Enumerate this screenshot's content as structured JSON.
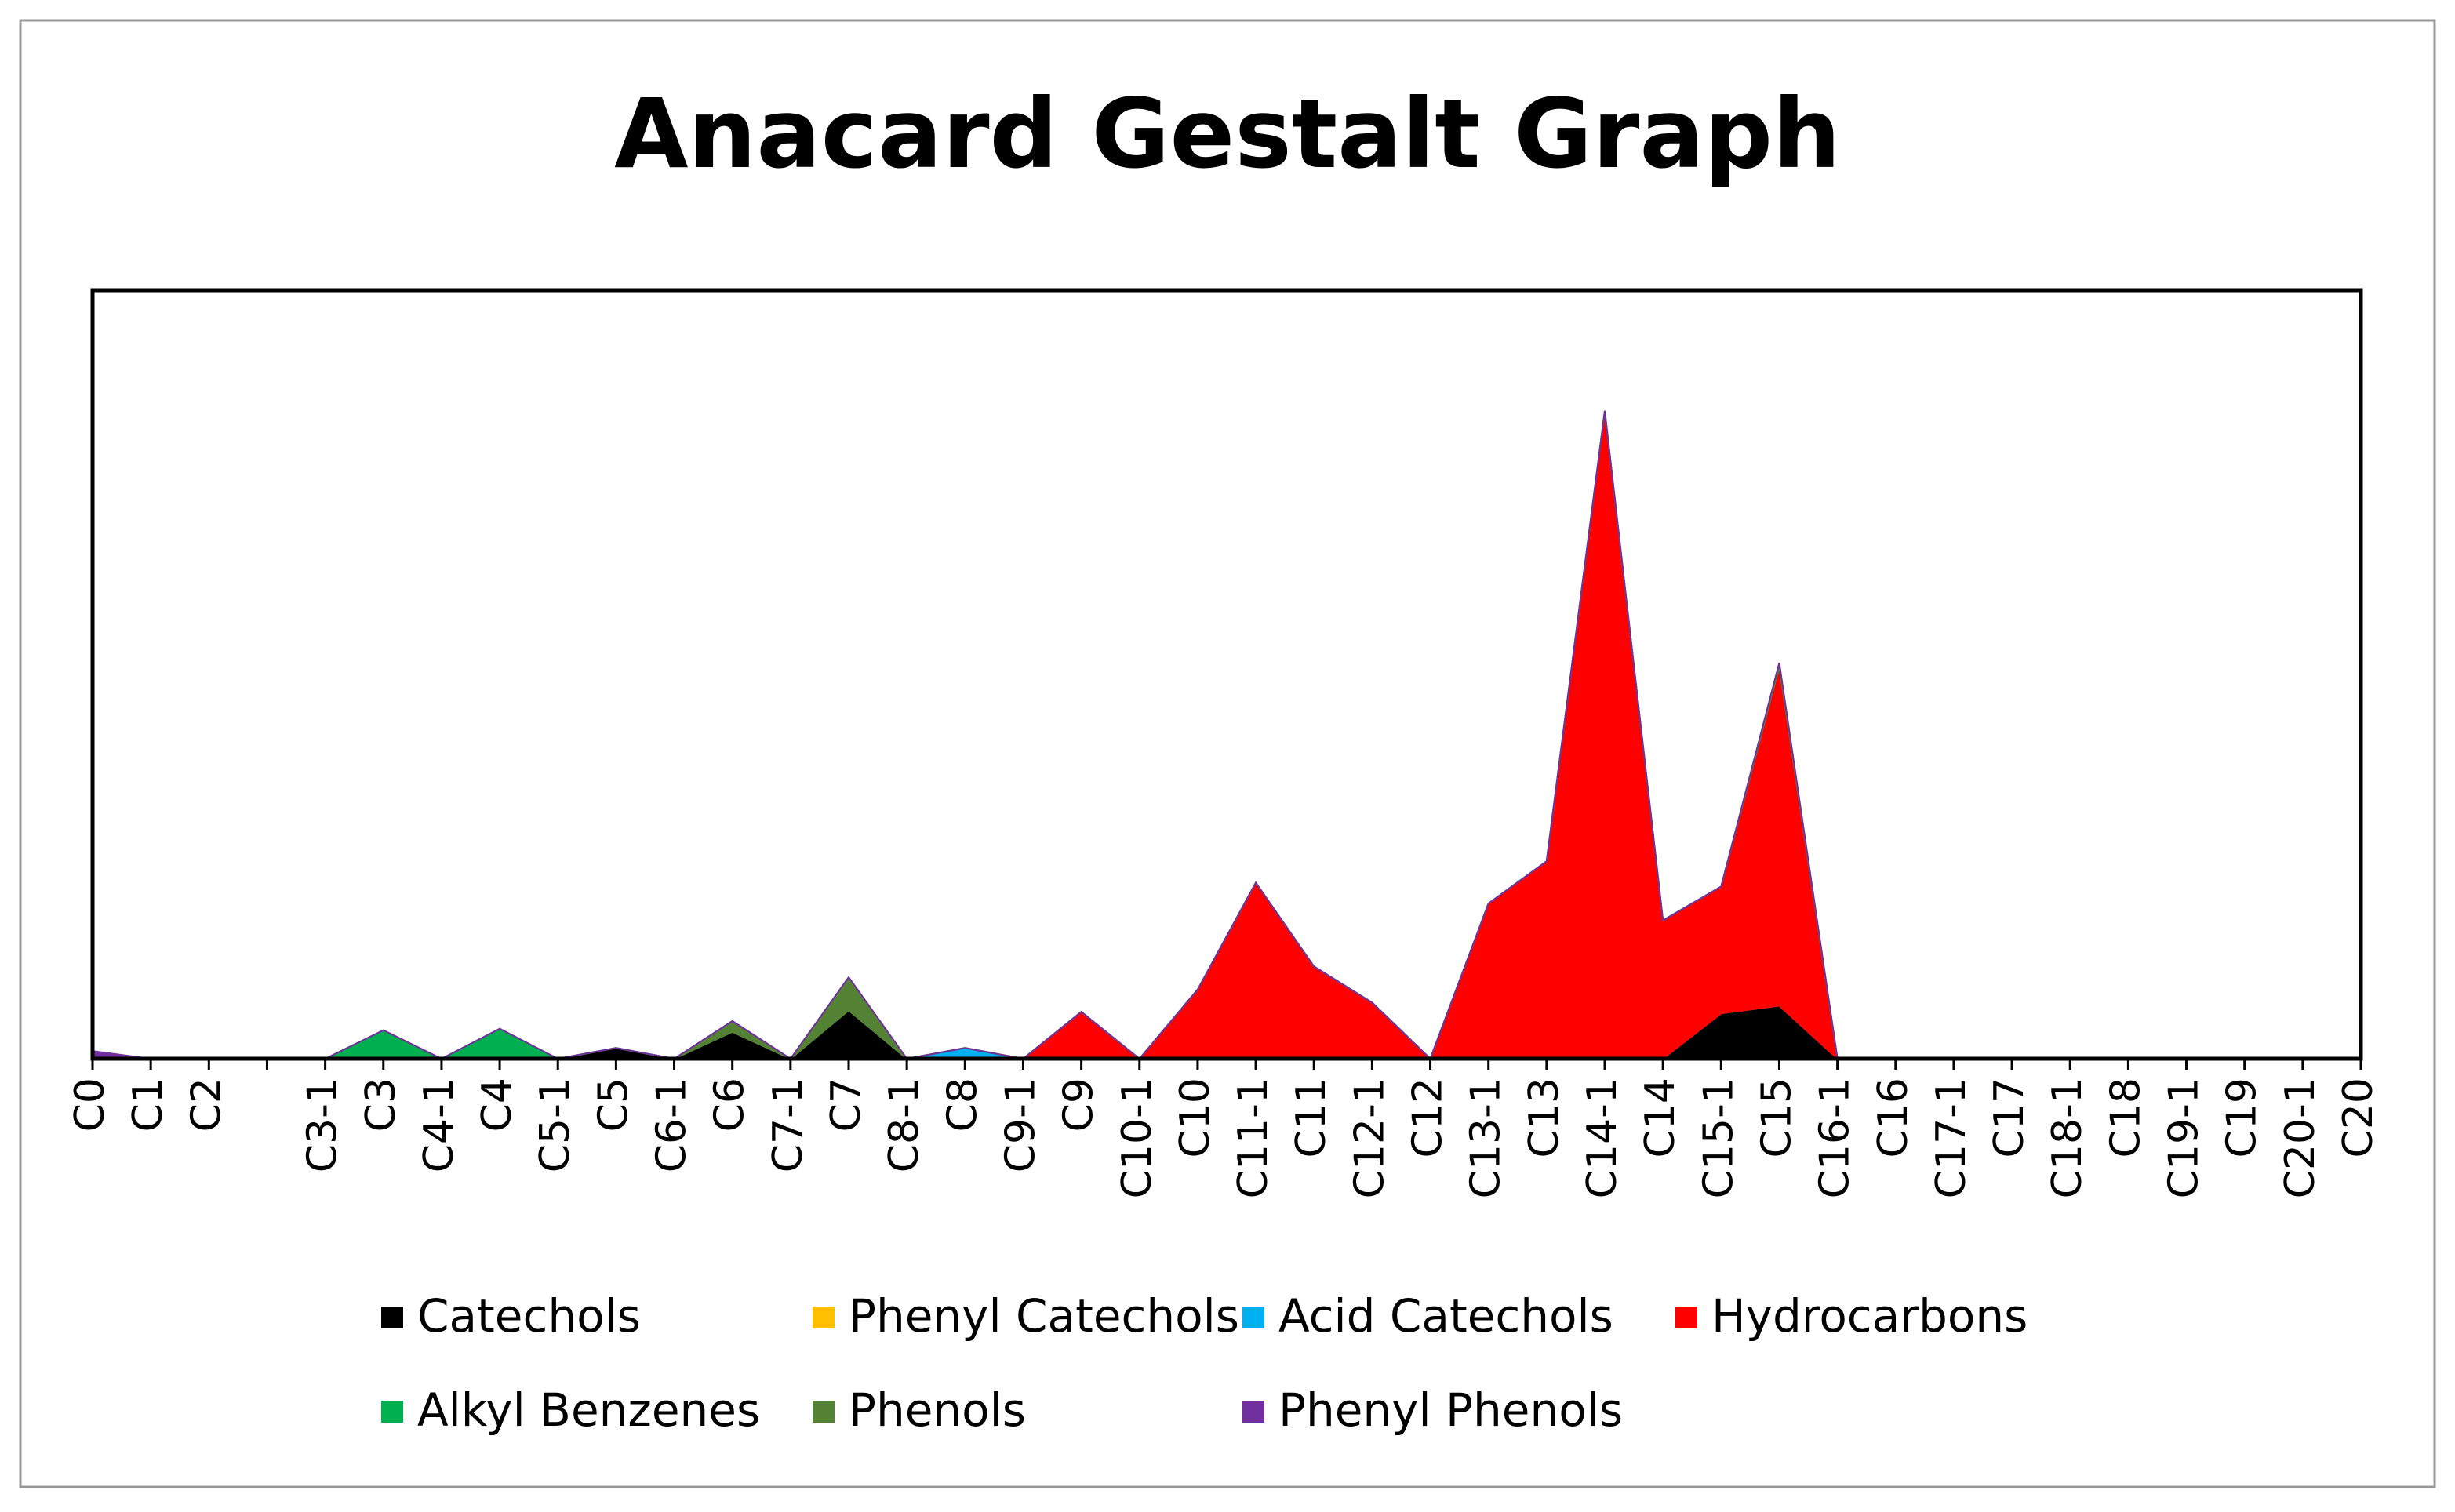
{
  "chart_data": {
    "type": "stacked-area",
    "title": "Anacard Gestalt Graph",
    "categories": [
      "C0",
      "C1",
      "C2",
      null,
      "C3-1",
      "C3",
      "C4-1",
      "C4",
      "C5-1",
      "C5",
      "C6-1",
      "C6",
      "C7-1",
      "C7",
      "C8-1",
      "C8",
      "C9-1",
      "C9",
      "C10-1",
      "C10",
      "C11-1",
      "C11",
      "C12-1",
      "C12",
      "C13-1",
      "C13",
      "C14-1",
      "C14",
      "C15-1",
      "C15",
      "C16-1",
      "C16",
      "C17-1",
      "C17",
      "C18-1",
      "C18",
      "C19-1",
      "C19",
      "C20-1",
      "C20"
    ],
    "ylim": [
      0,
      100
    ],
    "legend": "bottom",
    "series": [
      {
        "name": "Catechols",
        "color": "#000000",
        "values": [
          0,
          0,
          0,
          0,
          0,
          0,
          0,
          0,
          0,
          1.4,
          0,
          3.5,
          0,
          6.3,
          0,
          0,
          0,
          0,
          0,
          0,
          0,
          0,
          0,
          0,
          0,
          0,
          0,
          0,
          5.9,
          6.9,
          0,
          0,
          0,
          0,
          0,
          0,
          0,
          0,
          0,
          0
        ]
      },
      {
        "name": "Phenyl Catechols",
        "color": "#FFC000",
        "values": [
          0,
          0,
          0,
          0,
          0,
          0,
          0,
          0,
          0,
          0,
          0,
          0,
          0,
          0,
          0,
          0,
          0,
          0,
          0,
          0,
          0,
          0,
          0,
          0,
          0,
          0,
          0,
          0,
          0,
          0,
          0,
          0,
          0,
          0,
          0,
          0,
          0,
          0,
          0,
          0
        ]
      },
      {
        "name": "Acid Catechols",
        "color": "#00B0F0",
        "values": [
          0,
          0,
          0,
          0,
          0,
          0,
          0,
          0,
          0,
          0,
          0,
          0,
          0,
          0,
          0,
          1.4,
          0,
          0,
          0,
          0,
          0,
          0,
          0,
          0,
          0,
          0,
          0,
          0,
          0,
          0,
          0,
          0,
          0,
          0,
          0,
          0,
          0,
          0,
          0,
          0
        ]
      },
      {
        "name": "Hydrocarbons",
        "color": "#FF0000",
        "values": [
          0,
          0,
          0,
          0,
          0,
          0,
          0,
          0,
          0,
          0,
          0,
          0,
          0,
          0,
          0,
          0,
          0,
          6.1,
          0,
          9,
          22.9,
          12,
          7.3,
          0,
          20.2,
          25.7,
          84.3,
          18,
          16.5,
          44.1,
          0,
          0,
          0,
          0,
          0,
          0,
          0,
          0,
          0,
          0
        ]
      },
      {
        "name": "Alkyl Benzenes",
        "color": "#00B050",
        "values": [
          0,
          0,
          0,
          0,
          0,
          3.7,
          0,
          3.9,
          0,
          0,
          0,
          0,
          0,
          0,
          0,
          0,
          0,
          0,
          0,
          0,
          0,
          0,
          0,
          0,
          0,
          0,
          0,
          0,
          0,
          0,
          0,
          0,
          0,
          0,
          0,
          0,
          0,
          0,
          0,
          0
        ]
      },
      {
        "name": "Phenols",
        "color": "#548235",
        "values": [
          0,
          0,
          0,
          0,
          0,
          0,
          0,
          0,
          0,
          0,
          0,
          1.4,
          0,
          4.3,
          0,
          0,
          0,
          0,
          0,
          0,
          0,
          0,
          0,
          0,
          0,
          0,
          0,
          0,
          0,
          0.5,
          0,
          0,
          0,
          0,
          0,
          0,
          0,
          0,
          0,
          0
        ]
      },
      {
        "name": "Phenyl Phenols",
        "color": "#7030A0",
        "values": [
          1,
          0,
          0,
          0,
          0,
          0,
          0,
          0,
          0,
          0,
          0,
          0,
          0,
          0,
          0,
          0,
          0,
          0,
          0,
          0,
          0,
          0,
          0,
          0,
          0,
          0,
          0,
          0,
          0,
          0,
          0,
          0,
          0,
          0,
          0,
          0,
          0,
          0,
          0,
          0
        ]
      }
    ]
  }
}
